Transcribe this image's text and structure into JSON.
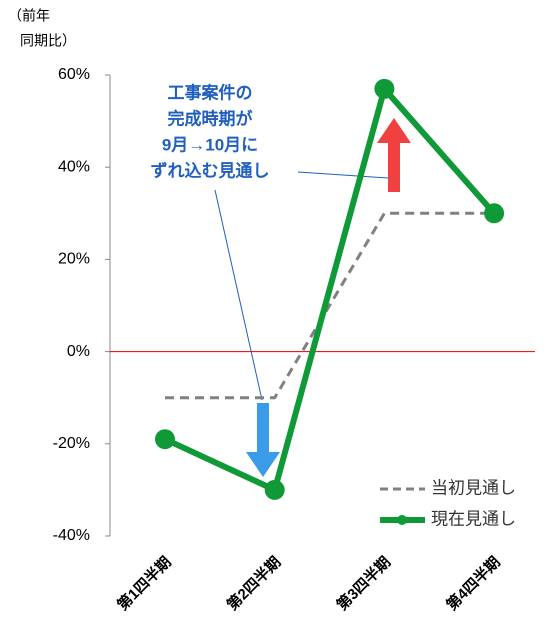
{
  "chart_data": {
    "type": "line",
    "y_label": [
      "（前年",
      "同期比）"
    ],
    "categories": [
      "第1四半期",
      "第2四半期",
      "第3四半期",
      "第4四半期"
    ],
    "series": [
      {
        "name": "当初見通し",
        "color": "#808080",
        "dashed": true,
        "values": [
          -10,
          -10,
          30,
          30
        ]
      },
      {
        "name": "現在見通し",
        "color": "#0f9a37",
        "dashed": false,
        "values": [
          -19,
          -30,
          57,
          30
        ]
      }
    ],
    "ylim": [
      -40,
      60
    ],
    "yticks": [
      {
        "value": -40,
        "label": "-40%"
      },
      {
        "value": -20,
        "label": "-20%"
      },
      {
        "value": 0,
        "label": "0%"
      },
      {
        "value": 20,
        "label": "20%"
      },
      {
        "value": 40,
        "label": "40%"
      },
      {
        "value": 60,
        "label": "60%"
      }
    ],
    "zero_line_color": "#e00000",
    "annotation": [
      "工事案件の",
      "完成時期が",
      "9月→10月に",
      "ずれ込む見通し"
    ],
    "legend": "lower right"
  }
}
